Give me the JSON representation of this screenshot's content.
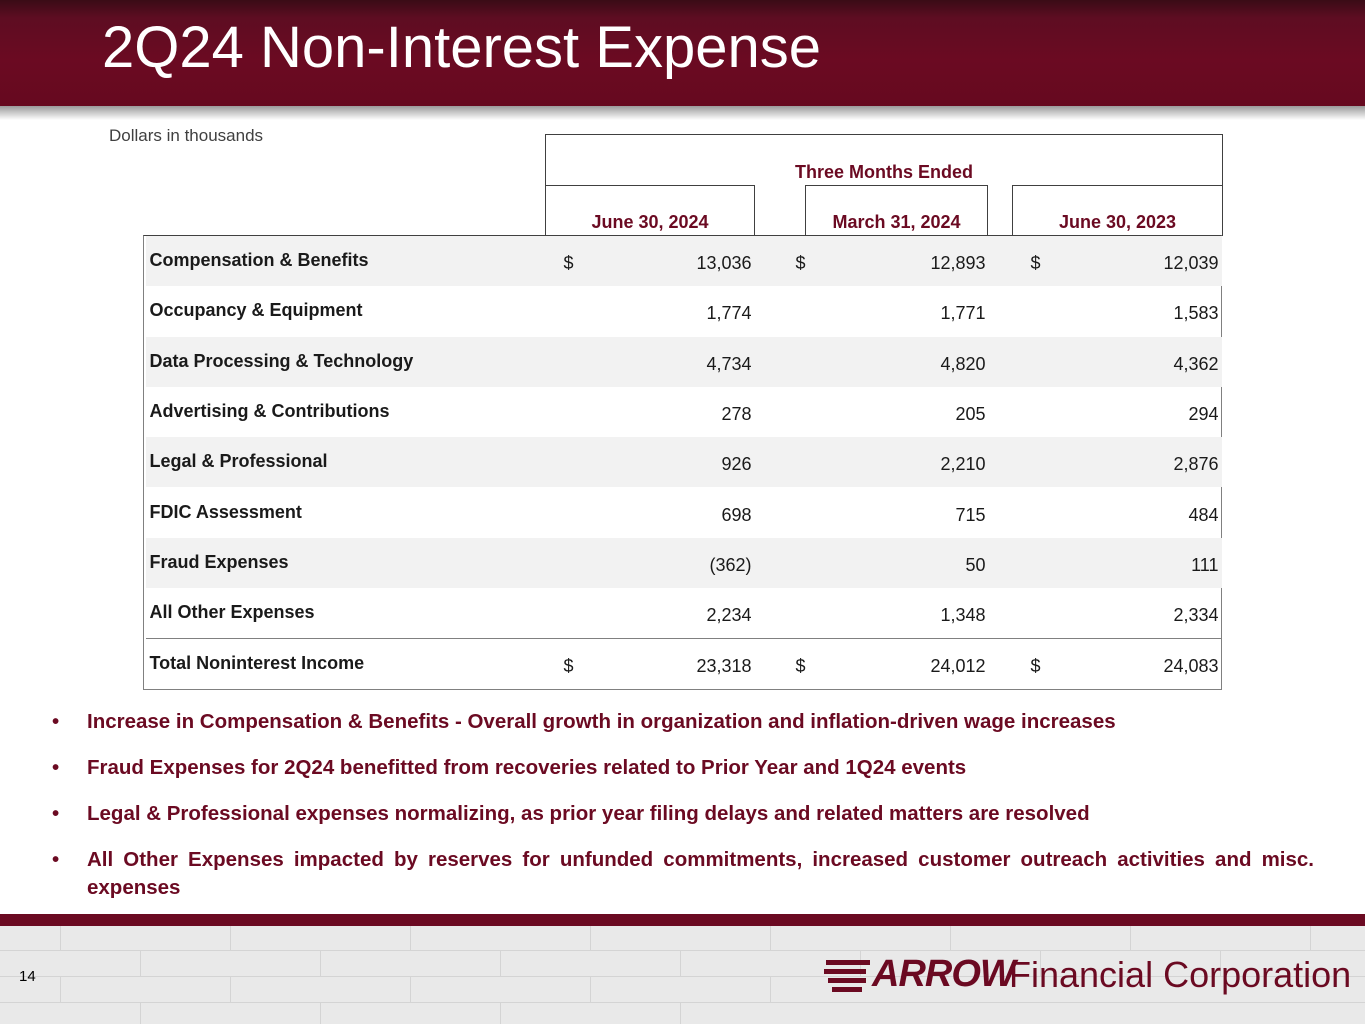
{
  "slide": {
    "title": "2Q24 Non-Interest Expense",
    "subtitle": "Dollars in thousands",
    "page_number": "14"
  },
  "table": {
    "group_header": "Three Months Ended",
    "columns": [
      "June 30, 2024",
      "March 31, 2024",
      "June 30, 2023"
    ],
    "rows": [
      {
        "label": "Compensation & Benefits",
        "currency": "$",
        "values": [
          "13,036",
          "12,893",
          "12,039"
        ]
      },
      {
        "label": "Occupancy & Equipment",
        "currency": "",
        "values": [
          "1,774",
          "1,771",
          "1,583"
        ]
      },
      {
        "label": "Data Processing & Technology",
        "currency": "",
        "values": [
          "4,734",
          "4,820",
          "4,362"
        ]
      },
      {
        "label": "Advertising & Contributions",
        "currency": "",
        "values": [
          "278",
          "205",
          "294"
        ]
      },
      {
        "label": "Legal & Professional",
        "currency": "",
        "values": [
          "926",
          "2,210",
          "2,876"
        ]
      },
      {
        "label": "FDIC Assessment",
        "currency": "",
        "values": [
          "698",
          "715",
          "484"
        ]
      },
      {
        "label": "Fraud Expenses",
        "currency": "",
        "values": [
          "(362)",
          "50",
          "111"
        ]
      },
      {
        "label": "All Other Expenses",
        "currency": "",
        "values": [
          "2,234",
          "1,348",
          "2,334"
        ]
      },
      {
        "label": "Total Noninterest Income",
        "currency": "$",
        "values": [
          "23,318",
          "24,012",
          "24,083"
        ]
      }
    ]
  },
  "bullets": [
    "Increase in Compensation & Benefits - Overall growth in organization and inflation-driven wage increases",
    "Fraud Expenses for 2Q24 benefitted from recoveries related to Prior Year and 1Q24 events",
    "Legal & Professional expenses normalizing, as prior year filing delays and related matters are resolved",
    "All Other Expenses impacted by reserves for unfunded commitments, increased customer outreach activities and misc. expenses"
  ],
  "logo": {
    "brand": "ARROW",
    "name": "Financial Corporation"
  },
  "colors": {
    "brand_maroon": "#6b0a22",
    "row_shade": "#f2f2f2"
  }
}
